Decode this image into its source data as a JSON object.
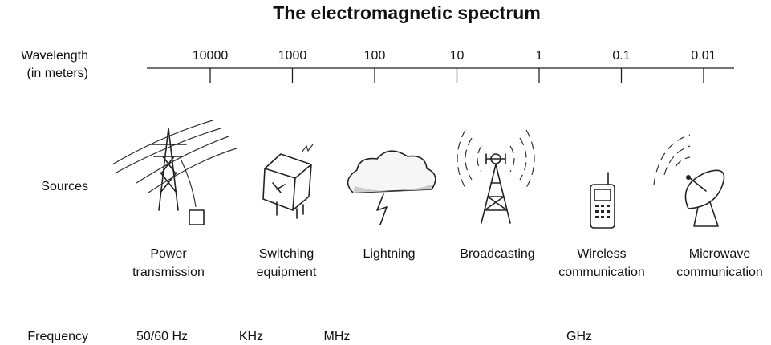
{
  "title": "The electromagnetic spectrum",
  "wavelength": {
    "label_lines": [
      "Wavelength",
      "(in meters)"
    ],
    "ticks": [
      "10000",
      "1000",
      "100",
      "10",
      "1",
      "0.1",
      "0.01"
    ]
  },
  "sources": {
    "label": "Sources",
    "items": [
      {
        "lines": [
          "Power",
          "transmission"
        ]
      },
      {
        "lines": [
          "Switching",
          "equipment"
        ]
      },
      {
        "lines": [
          "Lightning"
        ]
      },
      {
        "lines": [
          "Broadcasting"
        ]
      },
      {
        "lines": [
          "Wireless",
          "communication"
        ]
      },
      {
        "lines": [
          "Microwave",
          "communication"
        ]
      }
    ]
  },
  "frequency": {
    "label": "Frequency",
    "labels": [
      "50/60 Hz",
      "KHz",
      "MHz",
      "GHz"
    ]
  }
}
